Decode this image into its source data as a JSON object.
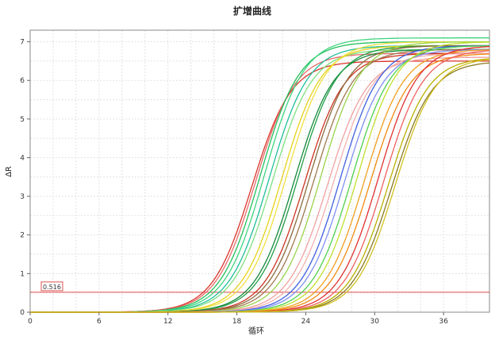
{
  "chart_data": {
    "type": "line",
    "title": "扩增曲线",
    "xlabel": "循环",
    "ylabel": "ΔR",
    "xlim": [
      0,
      40
    ],
    "ylim": [
      0,
      7.3
    ],
    "x_ticks": [
      0,
      6,
      12,
      18,
      24,
      30,
      36
    ],
    "y_ticks": [
      0,
      1,
      2,
      3,
      4,
      5,
      6,
      7
    ],
    "grid": true,
    "threshold": {
      "value": 0.516,
      "label": "0.516",
      "color": "#e05050"
    },
    "curve_model": "sigmoid",
    "series": [
      {
        "color": "#d9342b",
        "midpoint": 19.3,
        "plateau": 6.5
      },
      {
        "color": "#e86a6a",
        "midpoint": 19.6,
        "plateau": 6.7
      },
      {
        "color": "#22c05a",
        "midpoint": 20.0,
        "plateau": 7.0
      },
      {
        "color": "#3fd47f",
        "midpoint": 20.4,
        "plateau": 7.1
      },
      {
        "color": "#1fbf9a",
        "midpoint": 20.8,
        "plateau": 6.9
      },
      {
        "color": "#7fe07f",
        "midpoint": 21.1,
        "plateau": 6.8
      },
      {
        "color": "#e6d21a",
        "midpoint": 21.9,
        "plateau": 6.9
      },
      {
        "color": "#f0e040",
        "midpoint": 22.3,
        "plateau": 7.0
      },
      {
        "color": "#148a3a",
        "midpoint": 23.0,
        "plateau": 6.8
      },
      {
        "color": "#1f9e45",
        "midpoint": 23.3,
        "plateau": 6.9
      },
      {
        "color": "#cc3322",
        "midpoint": 23.9,
        "plateau": 6.7
      },
      {
        "color": "#8b6a3e",
        "midpoint": 24.3,
        "plateau": 6.9
      },
      {
        "color": "#a07850",
        "midpoint": 24.7,
        "plateau": 6.8
      },
      {
        "color": "#9ad34a",
        "midpoint": 25.3,
        "plateau": 7.0
      },
      {
        "color": "#f0a0a0",
        "midpoint": 25.9,
        "plateau": 6.6
      },
      {
        "color": "#f4b0b0",
        "midpoint": 26.4,
        "plateau": 6.7
      },
      {
        "color": "#3f5fe0",
        "midpoint": 27.0,
        "plateau": 6.9
      },
      {
        "color": "#7f8ff0",
        "midpoint": 27.4,
        "plateau": 6.8
      },
      {
        "color": "#4fd04f",
        "midpoint": 28.0,
        "plateau": 6.9
      },
      {
        "color": "#c0e030",
        "midpoint": 28.5,
        "plateau": 7.0
      },
      {
        "color": "#f0a020",
        "midpoint": 29.1,
        "plateau": 6.8
      },
      {
        "color": "#f08a10",
        "midpoint": 29.6,
        "plateau": 6.7
      },
      {
        "color": "#e03030",
        "midpoint": 30.3,
        "plateau": 6.9
      },
      {
        "color": "#f06060",
        "midpoint": 30.8,
        "plateau": 6.8
      },
      {
        "color": "#b8b000",
        "midpoint": 31.2,
        "plateau": 6.6
      },
      {
        "color": "#8a7a20",
        "midpoint": 31.5,
        "plateau": 6.5
      },
      {
        "color": "#d0c020",
        "midpoint": 31.8,
        "plateau": 6.6
      }
    ]
  }
}
